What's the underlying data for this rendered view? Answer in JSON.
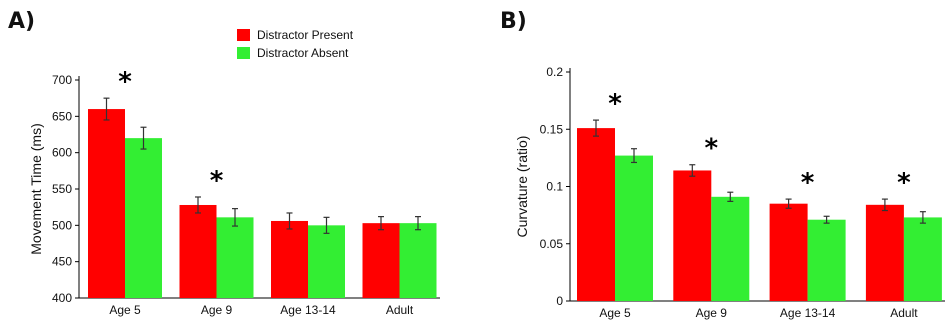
{
  "colors": {
    "present": "#ff0000",
    "absent": "#33ee33",
    "errorbar": "#333333"
  },
  "chart_data": [
    {
      "panel": "A)",
      "type": "bar",
      "categories": [
        "Age 5",
        "Age 9",
        "Age 13-14",
        "Adult"
      ],
      "series": [
        {
          "name": "Distractor Present",
          "values": [
            660,
            528,
            506,
            503
          ],
          "errors": [
            15,
            11,
            11,
            9
          ]
        },
        {
          "name": "Distractor Absent",
          "values": [
            620,
            511,
            500,
            503
          ],
          "errors": [
            15,
            12,
            11,
            9
          ]
        }
      ],
      "ylabel": "Movement Time (ms)",
      "xlabel": "",
      "ylim": [
        400,
        700
      ],
      "yticks": [
        400,
        450,
        500,
        550,
        600,
        650,
        700
      ],
      "ytick_labels": [
        "400",
        "450",
        "500",
        "550",
        "600",
        "650",
        "700"
      ],
      "significant": [
        true,
        true,
        false,
        false
      ],
      "significance_mark": "*",
      "legend": "top-center",
      "grid": false
    },
    {
      "panel": "B)",
      "type": "bar",
      "categories": [
        "Age 5",
        "Age 9",
        "Age 13-14",
        "Adult"
      ],
      "series": [
        {
          "name": "Distractor Present",
          "values": [
            0.151,
            0.114,
            0.085,
            0.084
          ],
          "errors": [
            0.007,
            0.005,
            0.004,
            0.005
          ]
        },
        {
          "name": "Distractor Absent",
          "values": [
            0.127,
            0.091,
            0.071,
            0.073
          ],
          "errors": [
            0.006,
            0.004,
            0.003,
            0.005
          ]
        }
      ],
      "ylabel": "Curvature (ratio)",
      "xlabel": "",
      "ylim": [
        0,
        0.2
      ],
      "yticks": [
        0,
        0.05,
        0.1,
        0.15,
        0.2
      ],
      "ytick_labels": [
        "0",
        "0.05",
        "0.1",
        "0.15",
        "0.2"
      ],
      "significant": [
        true,
        true,
        true,
        true
      ],
      "significance_mark": "*",
      "legend": "none",
      "grid": false
    }
  ]
}
